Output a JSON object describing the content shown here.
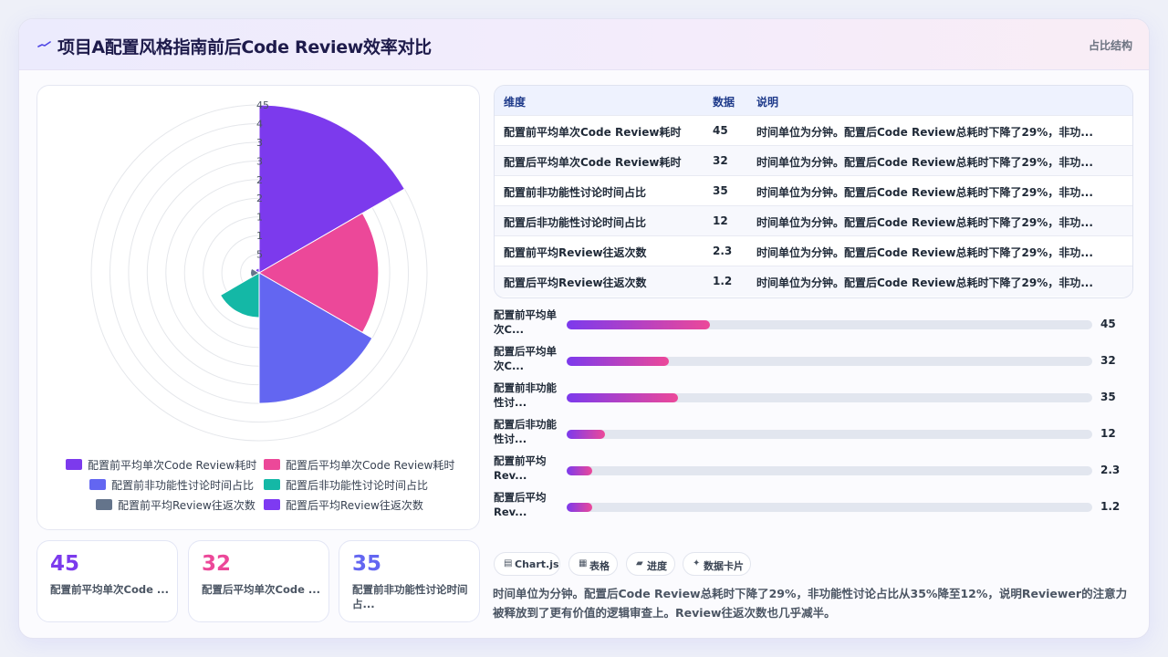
{
  "header": {
    "icon": "activity-icon",
    "title": "项目A配置风格指南前后Code Review效率对比",
    "tag": "占比结构"
  },
  "colors": {
    "purple": "#7c3aed",
    "pink": "#ec4899",
    "indigo": "#6366f1",
    "teal": "#14b8a6",
    "slate": "#64748b",
    "violet": "#7e3af2"
  },
  "chart_data": {
    "type": "polarArea",
    "categories": [
      "配置前平均单次Code Review耗时",
      "配置后平均单次Code Review耗时",
      "配置前非功能性讨论时间占比",
      "配置后非功能性讨论时间占比",
      "配置前平均Review往返次数",
      "配置后平均Review往返次数"
    ],
    "values": [
      45,
      32,
      35,
      12,
      2.3,
      1.2
    ],
    "colors": [
      "#7c3aed",
      "#ec4899",
      "#6366f1",
      "#14b8a6",
      "#64748b",
      "#7e3af2"
    ],
    "radial_max": 45,
    "radial_ticks": [
      "45",
      "4",
      "3",
      "3",
      "2",
      "2",
      "1",
      "1",
      "5"
    ],
    "legend_position": "bottom"
  },
  "kpis": [
    {
      "value": "45",
      "label": "配置前平均单次Code ...",
      "color": "#7c3aed"
    },
    {
      "value": "32",
      "label": "配置后平均单次Code ...",
      "color": "#ec4899"
    },
    {
      "value": "35",
      "label": "配置前非功能性讨论时间占...",
      "color": "#6366f1"
    }
  ],
  "table": {
    "headers": [
      "维度",
      "数据",
      "说明"
    ],
    "rows": [
      {
        "dim": "配置前平均单次Code Review耗时",
        "val": "45",
        "desc": "时间单位为分钟。配置后Code Review总耗时下降了29%，非功..."
      },
      {
        "dim": "配置后平均单次Code Review耗时",
        "val": "32",
        "desc": "时间单位为分钟。配置后Code Review总耗时下降了29%，非功..."
      },
      {
        "dim": "配置前非功能性讨论时间占比",
        "val": "35",
        "desc": "时间单位为分钟。配置后Code Review总耗时下降了29%，非功..."
      },
      {
        "dim": "配置后非功能性讨论时间占比",
        "val": "12",
        "desc": "时间单位为分钟。配置后Code Review总耗时下降了29%，非功..."
      },
      {
        "dim": "配置前平均Review往返次数",
        "val": "2.3",
        "desc": "时间单位为分钟。配置后Code Review总耗时下降了29%，非功..."
      },
      {
        "dim": "配置后平均Review往返次数",
        "val": "1.2",
        "desc": "时间单位为分钟。配置后Code Review总耗时下降了29%，非功..."
      }
    ]
  },
  "progress": [
    {
      "label": "配置前平均单次C...",
      "value": "45",
      "fraction": 0.273
    },
    {
      "label": "配置后平均单次C...",
      "value": "32",
      "fraction": 0.194
    },
    {
      "label": "配置前非功能性讨...",
      "value": "35",
      "fraction": 0.212
    },
    {
      "label": "配置后非功能性讨...",
      "value": "12",
      "fraction": 0.073
    },
    {
      "label": "配置前平均Rev...",
      "value": "2.3",
      "fraction": 0.048
    },
    {
      "label": "配置后平均Rev...",
      "value": "1.2",
      "fraction": 0.048
    }
  ],
  "tags": [
    {
      "icon": "chart-icon",
      "label": "Chart.js"
    },
    {
      "icon": "table-icon",
      "label": "表格"
    },
    {
      "icon": "progress-icon",
      "label": "进度"
    },
    {
      "icon": "sparkle-icon",
      "label": "数据卡片"
    }
  ],
  "note": "时间单位为分钟。配置后Code Review总耗时下降了29%，非功能性讨论占比从35%降至12%，说明Reviewer的注意力被释放到了更有价值的逻辑审查上。Review往返次数也几乎减半。"
}
